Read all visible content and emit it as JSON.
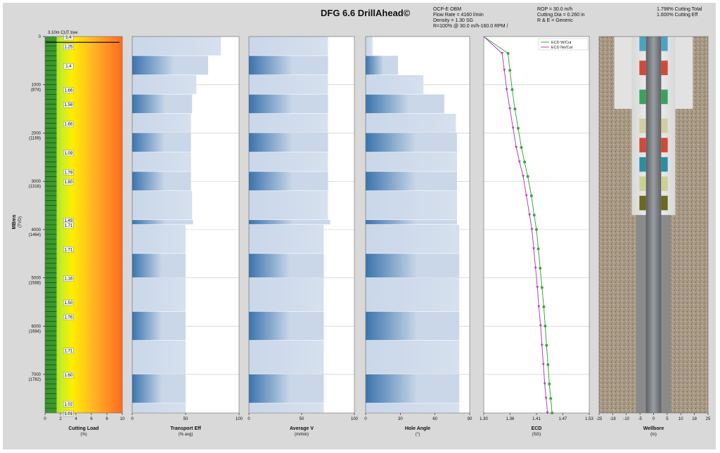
{
  "header": {
    "title": "DFG 6.6 DrillAhead©",
    "fluid_info": [
      "OCP-E OBM",
      "Flow Rate = 4160 l/min",
      "Density = 1.30 SG",
      "R=100% @ 30.0 m/h-160.0 RPM /"
    ],
    "rop_info": [
      "ROP = 30.0 m/h",
      "Cutting Dia = 0.260 in",
      "R & E = Generic"
    ],
    "cutting_info": [
      "1.798% Cutting Total",
      "1.600% Cutting Eff"
    ]
  },
  "depth_axis": {
    "label": "MBms",
    "sublabel": "(TVD)",
    "ticks": [
      {
        "md": 0,
        "label": "0",
        "tvd": ""
      },
      {
        "md": 1000,
        "label": "1000",
        "tvd": "(874)"
      },
      {
        "md": 2000,
        "label": "2000",
        "tvd": "(1169)"
      },
      {
        "md": 3000,
        "label": "3000",
        "tvd": "(1316)"
      },
      {
        "md": 4000,
        "label": "4000",
        "tvd": "(1464)"
      },
      {
        "md": 5000,
        "label": "5000",
        "tvd": "(1588)"
      },
      {
        "md": 6000,
        "label": "6000",
        "tvd": "(1684)"
      },
      {
        "md": 7000,
        "label": "7000",
        "tvd": "(1782)"
      }
    ]
  },
  "colors": {
    "frame": "#d9d9d9",
    "grid": "#c8c8c8",
    "bar_dark": "#3b74ad",
    "bar_light": "#c9d7e9",
    "ecd_with_cut": "#3aa83a",
    "ecd_no_cut": "#b540b5",
    "cutting_line": "#1f7a1f",
    "wellbore_rock": "#a99a85"
  },
  "chart_data": [
    {
      "type": "area",
      "panel": "cutting-load",
      "xlabel": "Cutting Load",
      "unit": "(%)",
      "xlim": [
        0,
        10
      ],
      "x_ticks": [
        "0",
        "2",
        "4",
        "6",
        "8",
        "10"
      ],
      "annotation": "3.10m CUT tree",
      "depth": [
        0,
        200,
        600,
        1100,
        1400,
        1800,
        2400,
        2800,
        3000,
        3800,
        3900,
        4400,
        5000,
        5500,
        5800,
        6500,
        7000,
        7600,
        7800
      ],
      "labels": [
        "1.4",
        "1.25",
        "1.4",
        "1.66",
        "1.56",
        "1.66",
        "1.09",
        "1.79",
        "1.80",
        "1.49",
        "1.71",
        "1.71",
        "1.16",
        "1.50",
        "1.76",
        "1.71",
        "1.60",
        "1.02",
        "1.01"
      ]
    },
    {
      "type": "bar",
      "panel": "transport-eff",
      "xlabel": "Transport Eff",
      "unit": "(% avg)",
      "xlim": [
        0,
        100
      ],
      "x_ticks": [
        "0",
        "50",
        "100"
      ],
      "depth_edges": [
        0,
        400,
        800,
        1200,
        1600,
        2000,
        2400,
        2800,
        3200,
        3800,
        3900,
        4500,
        5000,
        5700,
        6300,
        7000,
        7600,
        7800
      ],
      "values": [
        83,
        71,
        60,
        56,
        55,
        55,
        55,
        55,
        56,
        57,
        50,
        50,
        50,
        50,
        50,
        50,
        50
      ]
    },
    {
      "type": "bar",
      "panel": "average-v",
      "xlabel": "Average V",
      "unit": "(m/min)",
      "xlim": [
        0,
        100
      ],
      "x_ticks": [
        "0",
        "50",
        "100"
      ],
      "depth_edges": [
        0,
        400,
        800,
        1200,
        1600,
        2000,
        2400,
        2800,
        3200,
        3800,
        3900,
        4500,
        5000,
        5700,
        6300,
        7000,
        7600,
        7800
      ],
      "values": [
        75,
        75,
        75,
        75,
        75,
        75,
        75,
        75,
        75,
        77,
        71,
        71,
        71,
        71,
        71,
        71,
        71
      ]
    },
    {
      "type": "bar",
      "panel": "hole-angle",
      "xlabel": "Hole Angle",
      "unit": "(°)",
      "xlim": [
        0,
        90
      ],
      "x_ticks": [
        "0",
        "30",
        "60",
        "90"
      ],
      "depth_edges": [
        0,
        400,
        800,
        1200,
        1600,
        2000,
        2400,
        2800,
        3200,
        3800,
        3900,
        4500,
        5000,
        5700,
        6300,
        7000,
        7600,
        7800
      ],
      "values": [
        6,
        28,
        50,
        68,
        78,
        79,
        79,
        79,
        79,
        79,
        81,
        81,
        81,
        81,
        81,
        81,
        81
      ]
    },
    {
      "type": "line",
      "panel": "ecd",
      "xlabel": "ECD",
      "unit": "(SG)",
      "xlim": [
        1.3,
        1.53
      ],
      "x_ticks": [
        "1.30",
        "1.36",
        "1.41",
        "1.47",
        "1.53"
      ],
      "legend_placement": "top-right",
      "series": [
        {
          "name": "ECD W/Cut",
          "depth": [
            0,
            350,
            700,
            1100,
            1500,
            1900,
            2300,
            2600,
            2900,
            3300,
            3700,
            4000,
            4400,
            4800,
            5200,
            5600,
            6000,
            6400,
            6800,
            7200,
            7500,
            7800
          ],
          "values": [
            1.3,
            1.353,
            1.357,
            1.362,
            1.368,
            1.375,
            1.382,
            1.389,
            1.396,
            1.404,
            1.41,
            1.415,
            1.419,
            1.423,
            1.427,
            1.431,
            1.434,
            1.437,
            1.44,
            1.443,
            1.446,
            1.449
          ]
        },
        {
          "name": "ECD No/Cut",
          "depth": [
            0,
            350,
            700,
            1100,
            1500,
            1900,
            2300,
            2600,
            2900,
            3300,
            3700,
            4000,
            4400,
            4800,
            5200,
            5600,
            6000,
            6400,
            6800,
            7200,
            7500,
            7800
          ],
          "values": [
            1.3,
            1.34,
            1.345,
            1.35,
            1.357,
            1.364,
            1.371,
            1.378,
            1.386,
            1.393,
            1.4,
            1.405,
            1.409,
            1.413,
            1.417,
            1.42,
            1.424,
            1.427,
            1.43,
            1.433,
            1.436,
            1.439
          ]
        }
      ]
    },
    {
      "type": "area",
      "panel": "wellbore",
      "xlabel": "Wellbore",
      "unit": "(in)",
      "xlim": [
        -25,
        25
      ],
      "x_ticks": [
        "-25",
        "-18",
        "-10",
        "-5",
        "0",
        "5",
        "10",
        "18",
        "25"
      ]
    }
  ]
}
